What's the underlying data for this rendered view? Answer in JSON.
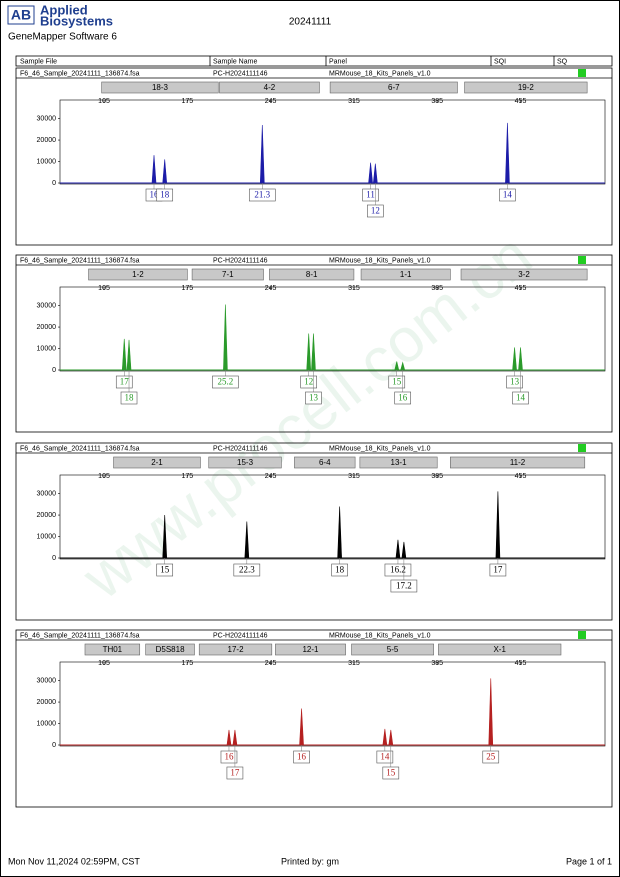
{
  "header": {
    "logo_mark": "AB",
    "logo": [
      "Applied",
      "Biosystems"
    ],
    "software": "GeneMapper Software 6",
    "date": "20241111"
  },
  "columns": [
    "Sample File",
    "Sample Name",
    "Panel",
    "SQI",
    "SQ"
  ],
  "watermark": "www.procell.com.cn",
  "chart_data": [
    {
      "type": "peaks",
      "sample_file": "F6_46_Sample_20241111_136874.fsa",
      "sample_name": "PC-H2024111146",
      "panel": "MRMouse_18_Kits_Panels_v1.0",
      "color": "#1c1ca8",
      "loci": [
        {
          "name": "18-3",
          "range": [
            103,
            201
          ]
        },
        {
          "name": "4-2",
          "range": [
            202,
            286
          ]
        },
        {
          "name": "6-7",
          "range": [
            295,
            402
          ]
        },
        {
          "name": "19-2",
          "range": [
            408,
            511
          ]
        }
      ],
      "x": [
        147,
        156,
        238,
        329,
        333,
        444
      ],
      "values": [
        13000,
        11000,
        27000,
        9500,
        9000,
        28000
      ],
      "allele_labels": [
        "16",
        "18",
        "21.3",
        "11",
        "12",
        "14"
      ],
      "xlim": [
        68,
        526
      ],
      "ylim": [
        0,
        34000
      ],
      "xticks": [
        105,
        175,
        245,
        315,
        385,
        455
      ],
      "yticks": [
        0,
        10000,
        20000,
        30000
      ]
    },
    {
      "type": "peaks",
      "sample_file": "F6_46_Sample_20241111_136874.fsa",
      "sample_name": "PC-H2024111146",
      "panel": "MRMouse_18_Kits_Panels_v1.0",
      "color": "#2a9a2a",
      "loci": [
        {
          "name": "1-2",
          "range": [
            92,
            175
          ]
        },
        {
          "name": "7-1",
          "range": [
            179,
            239
          ]
        },
        {
          "name": "8-1",
          "range": [
            244,
            315
          ]
        },
        {
          "name": "1-1",
          "range": [
            321,
            396
          ]
        },
        {
          "name": "3-2",
          "range": [
            405,
            511
          ]
        }
      ],
      "x": [
        122,
        126,
        207,
        277,
        281,
        351,
        356,
        450,
        455
      ],
      "values": [
        14500,
        14000,
        30500,
        17000,
        17000,
        4000,
        3500,
        10500,
        10500
      ],
      "allele_labels": [
        "17",
        "18",
        "25.2",
        "12",
        "13",
        "15",
        "16",
        "13",
        "14"
      ],
      "xlim": [
        68,
        526
      ],
      "ylim": [
        0,
        34000
      ],
      "xticks": [
        105,
        175,
        245,
        315,
        385,
        455
      ],
      "yticks": [
        0,
        10000,
        20000,
        30000
      ]
    },
    {
      "type": "peaks",
      "sample_file": "F6_46_Sample_20241111_136874.fsa",
      "sample_name": "PC-H2024111146",
      "panel": "MRMouse_18_Kits_Panels_v1.0",
      "color": "#000000",
      "loci": [
        {
          "name": "2-1",
          "range": [
            113,
            186
          ]
        },
        {
          "name": "15-3",
          "range": [
            193,
            254
          ]
        },
        {
          "name": "6-4",
          "range": [
            265,
            316
          ]
        },
        {
          "name": "13-1",
          "range": [
            320,
            385
          ]
        },
        {
          "name": "11-2",
          "range": [
            396,
            509
          ]
        }
      ],
      "x": [
        156,
        225,
        303,
        352,
        357,
        436
      ],
      "values": [
        20000,
        17000,
        24000,
        8500,
        7500,
        31000
      ],
      "allele_labels": [
        "15",
        "22.3",
        "18",
        "16.2",
        "17.2",
        "17"
      ],
      "xlim": [
        68,
        526
      ],
      "ylim": [
        0,
        34000
      ],
      "xticks": [
        105,
        175,
        245,
        315,
        385,
        455
      ],
      "yticks": [
        0,
        10000,
        20000,
        30000
      ]
    },
    {
      "type": "peaks",
      "sample_file": "F6_46_Sample_20241111_136874.fsa",
      "sample_name": "PC-H2024111146",
      "panel": "MRMouse_18_Kits_Panels_v1.0",
      "color": "#b52020",
      "loci": [
        {
          "name": "TH01",
          "range": [
            89,
            135
          ]
        },
        {
          "name": "D5S818",
          "range": [
            140,
            181
          ]
        },
        {
          "name": "17-2",
          "range": [
            185,
            246
          ]
        },
        {
          "name": "12-1",
          "range": [
            249,
            308
          ]
        },
        {
          "name": "5-5",
          "range": [
            313,
            382
          ]
        },
        {
          "name": "X-1",
          "range": [
            386,
            489
          ]
        }
      ],
      "x": [
        210,
        215,
        271,
        341,
        346,
        430
      ],
      "values": [
        7000,
        7000,
        17000,
        7500,
        7000,
        31000
      ],
      "allele_labels": [
        "16",
        "17",
        "16",
        "14",
        "15",
        "25"
      ],
      "xlim": [
        68,
        526
      ],
      "ylim": [
        0,
        34000
      ],
      "xticks": [
        105,
        175,
        245,
        315,
        385,
        455
      ],
      "yticks": [
        0,
        10000,
        20000,
        30000
      ]
    }
  ],
  "footer": {
    "printed_at": "Mon Nov 11,2024 02:59PM, CST",
    "printed_by": "Printed by: gm",
    "page": "Page 1 of 1"
  }
}
